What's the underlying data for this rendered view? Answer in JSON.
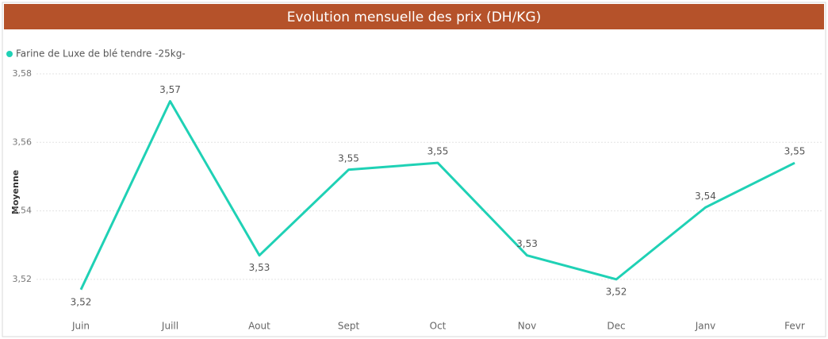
{
  "chart_data": {
    "type": "line",
    "title": "Evolution mensuelle des prix (DH/KG)",
    "y_axis_label": "Moyenne",
    "categories": [
      "Juin",
      "Juill",
      "Aout",
      "Sept",
      "Oct",
      "Nov",
      "Dec",
      "Janv",
      "Fevr"
    ],
    "series": [
      {
        "name": "Farine de Luxe de blé tendre -25kg-",
        "color": "#1fd1b5",
        "values": [
          3.517,
          3.572,
          3.527,
          3.552,
          3.554,
          3.527,
          3.52,
          3.541,
          3.554
        ],
        "value_labels": [
          "3,52",
          "3,57",
          "3,53",
          "3,55",
          "3,55",
          "3,53",
          "3,52",
          "3,54",
          "3,55"
        ]
      }
    ],
    "ylim": [
      3.51,
      3.58
    ],
    "yticks": [
      {
        "value": 3.52,
        "label": "3,52"
      },
      {
        "value": 3.54,
        "label": "3,54"
      },
      {
        "value": 3.56,
        "label": "3,56"
      },
      {
        "value": 3.58,
        "label": "3,58"
      }
    ],
    "grid": true
  }
}
